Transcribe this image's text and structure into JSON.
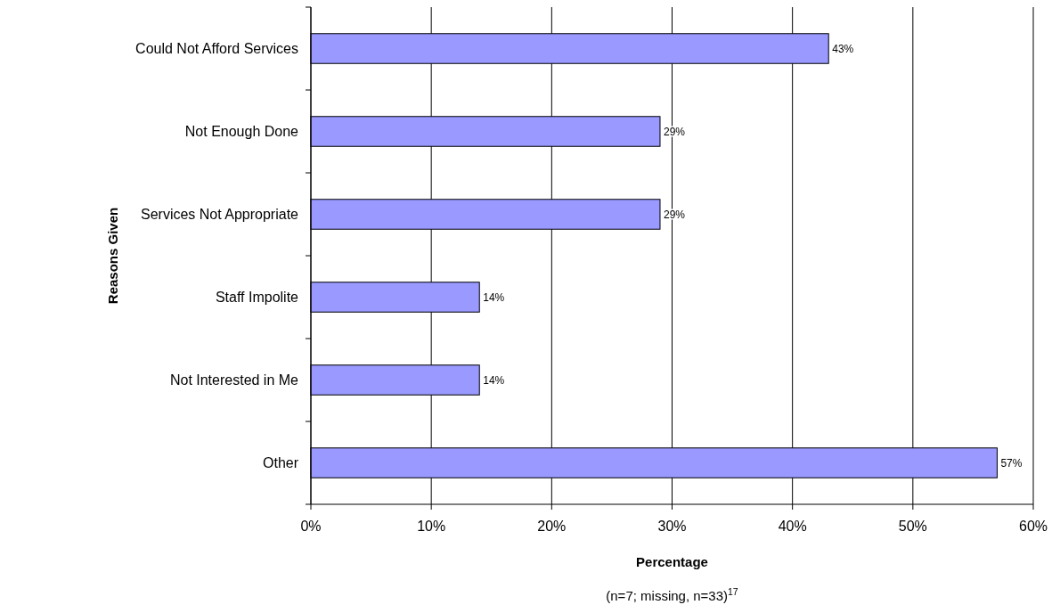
{
  "chart_data": {
    "type": "bar",
    "orientation": "horizontal",
    "xlabel": "Percentage",
    "ylabel": "Reasons Given",
    "annotations": [
      "(n=7; missing, n=33)$^{17}$"
    ],
    "categories": [
      "Could Not Afford Services",
      "Not Enough Done",
      "Services Not Appropriate",
      "Staff Impolite",
      "Not Interested in Me",
      "Other"
    ],
    "values": [
      43,
      29,
      29,
      14,
      14,
      57
    ],
    "value_labels": [
      "43%",
      "29%",
      "29%",
      "14%",
      "14%",
      "57%"
    ],
    "color": "#9999ff",
    "xlim": [
      0,
      60
    ],
    "xticks": [
      {
        "value": 0,
        "label": "0%"
      },
      {
        "value": 10,
        "label": "10%"
      },
      {
        "value": 20,
        "label": "20%"
      },
      {
        "value": 30,
        "label": "30%"
      },
      {
        "value": 40,
        "label": "40%"
      },
      {
        "value": 50,
        "label": "50%"
      },
      {
        "value": 60,
        "label": "60%"
      }
    ],
    "grid": "x"
  }
}
